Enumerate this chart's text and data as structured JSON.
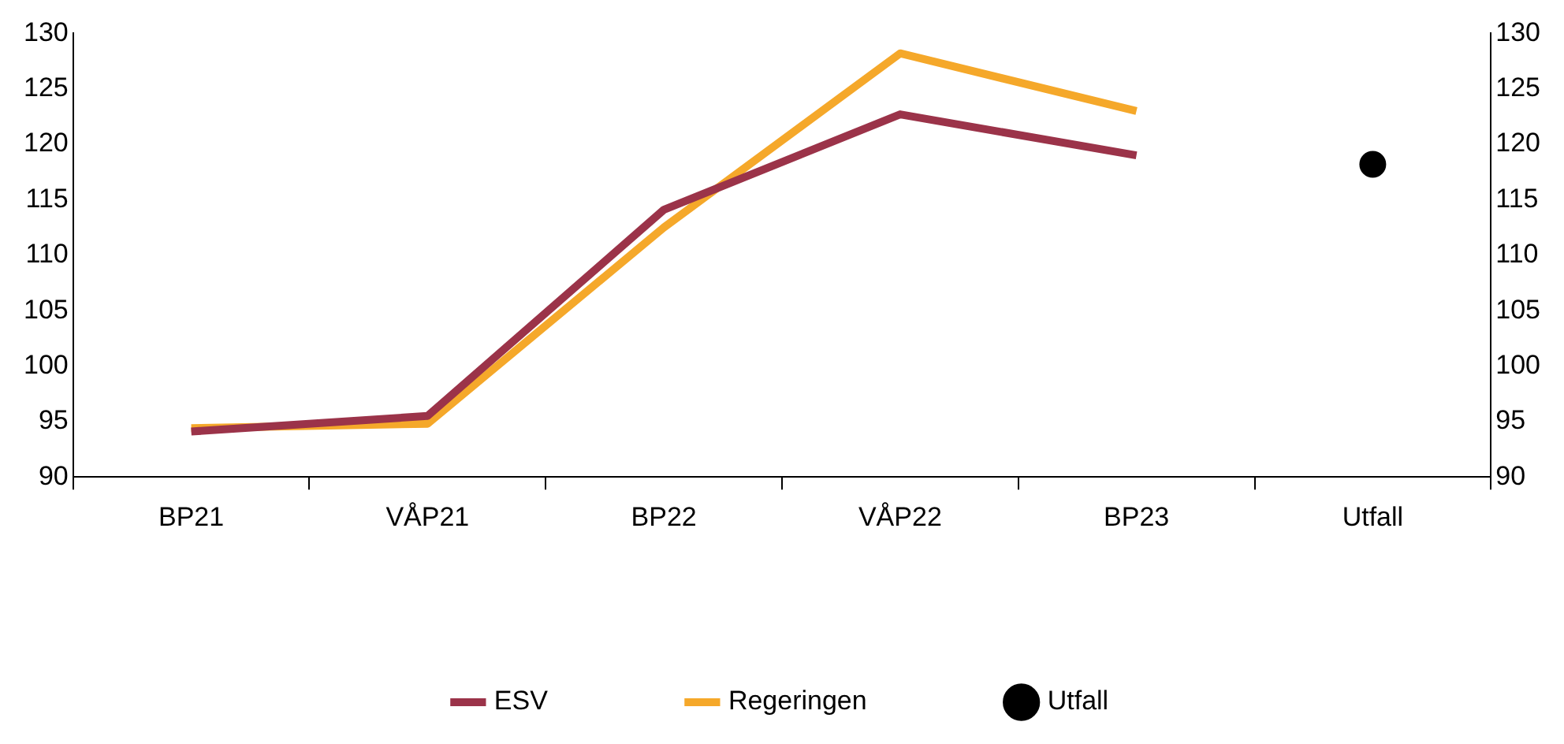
{
  "chart_data": {
    "type": "line",
    "categories": [
      "BP21",
      "VÅP21",
      "BP22",
      "VÅP22",
      "BP23",
      "Utfall"
    ],
    "series": [
      {
        "name": "ESV",
        "color": "#9b3349",
        "values": [
          94.1,
          95.5,
          114.1,
          122.7,
          119.0,
          null
        ]
      },
      {
        "name": "Regeringen",
        "color": "#f5a82a",
        "values": [
          94.4,
          94.8,
          112.5,
          128.2,
          123.0,
          null
        ]
      },
      {
        "name": "Utfall",
        "type": "scatter",
        "color": "#000000",
        "marker": "circle",
        "x": [
          "Utfall"
        ],
        "values": [
          118.2
        ]
      }
    ],
    "ylim": [
      90,
      130
    ],
    "yticks": [
      90,
      95,
      100,
      105,
      110,
      115,
      120,
      125,
      130
    ],
    "y2lim": [
      90,
      130
    ],
    "y2ticks": [
      90,
      95,
      100,
      105,
      110,
      115,
      120,
      125,
      130
    ],
    "grid": false,
    "legend": "bottom",
    "marker": "none",
    "line_style": "solid"
  }
}
